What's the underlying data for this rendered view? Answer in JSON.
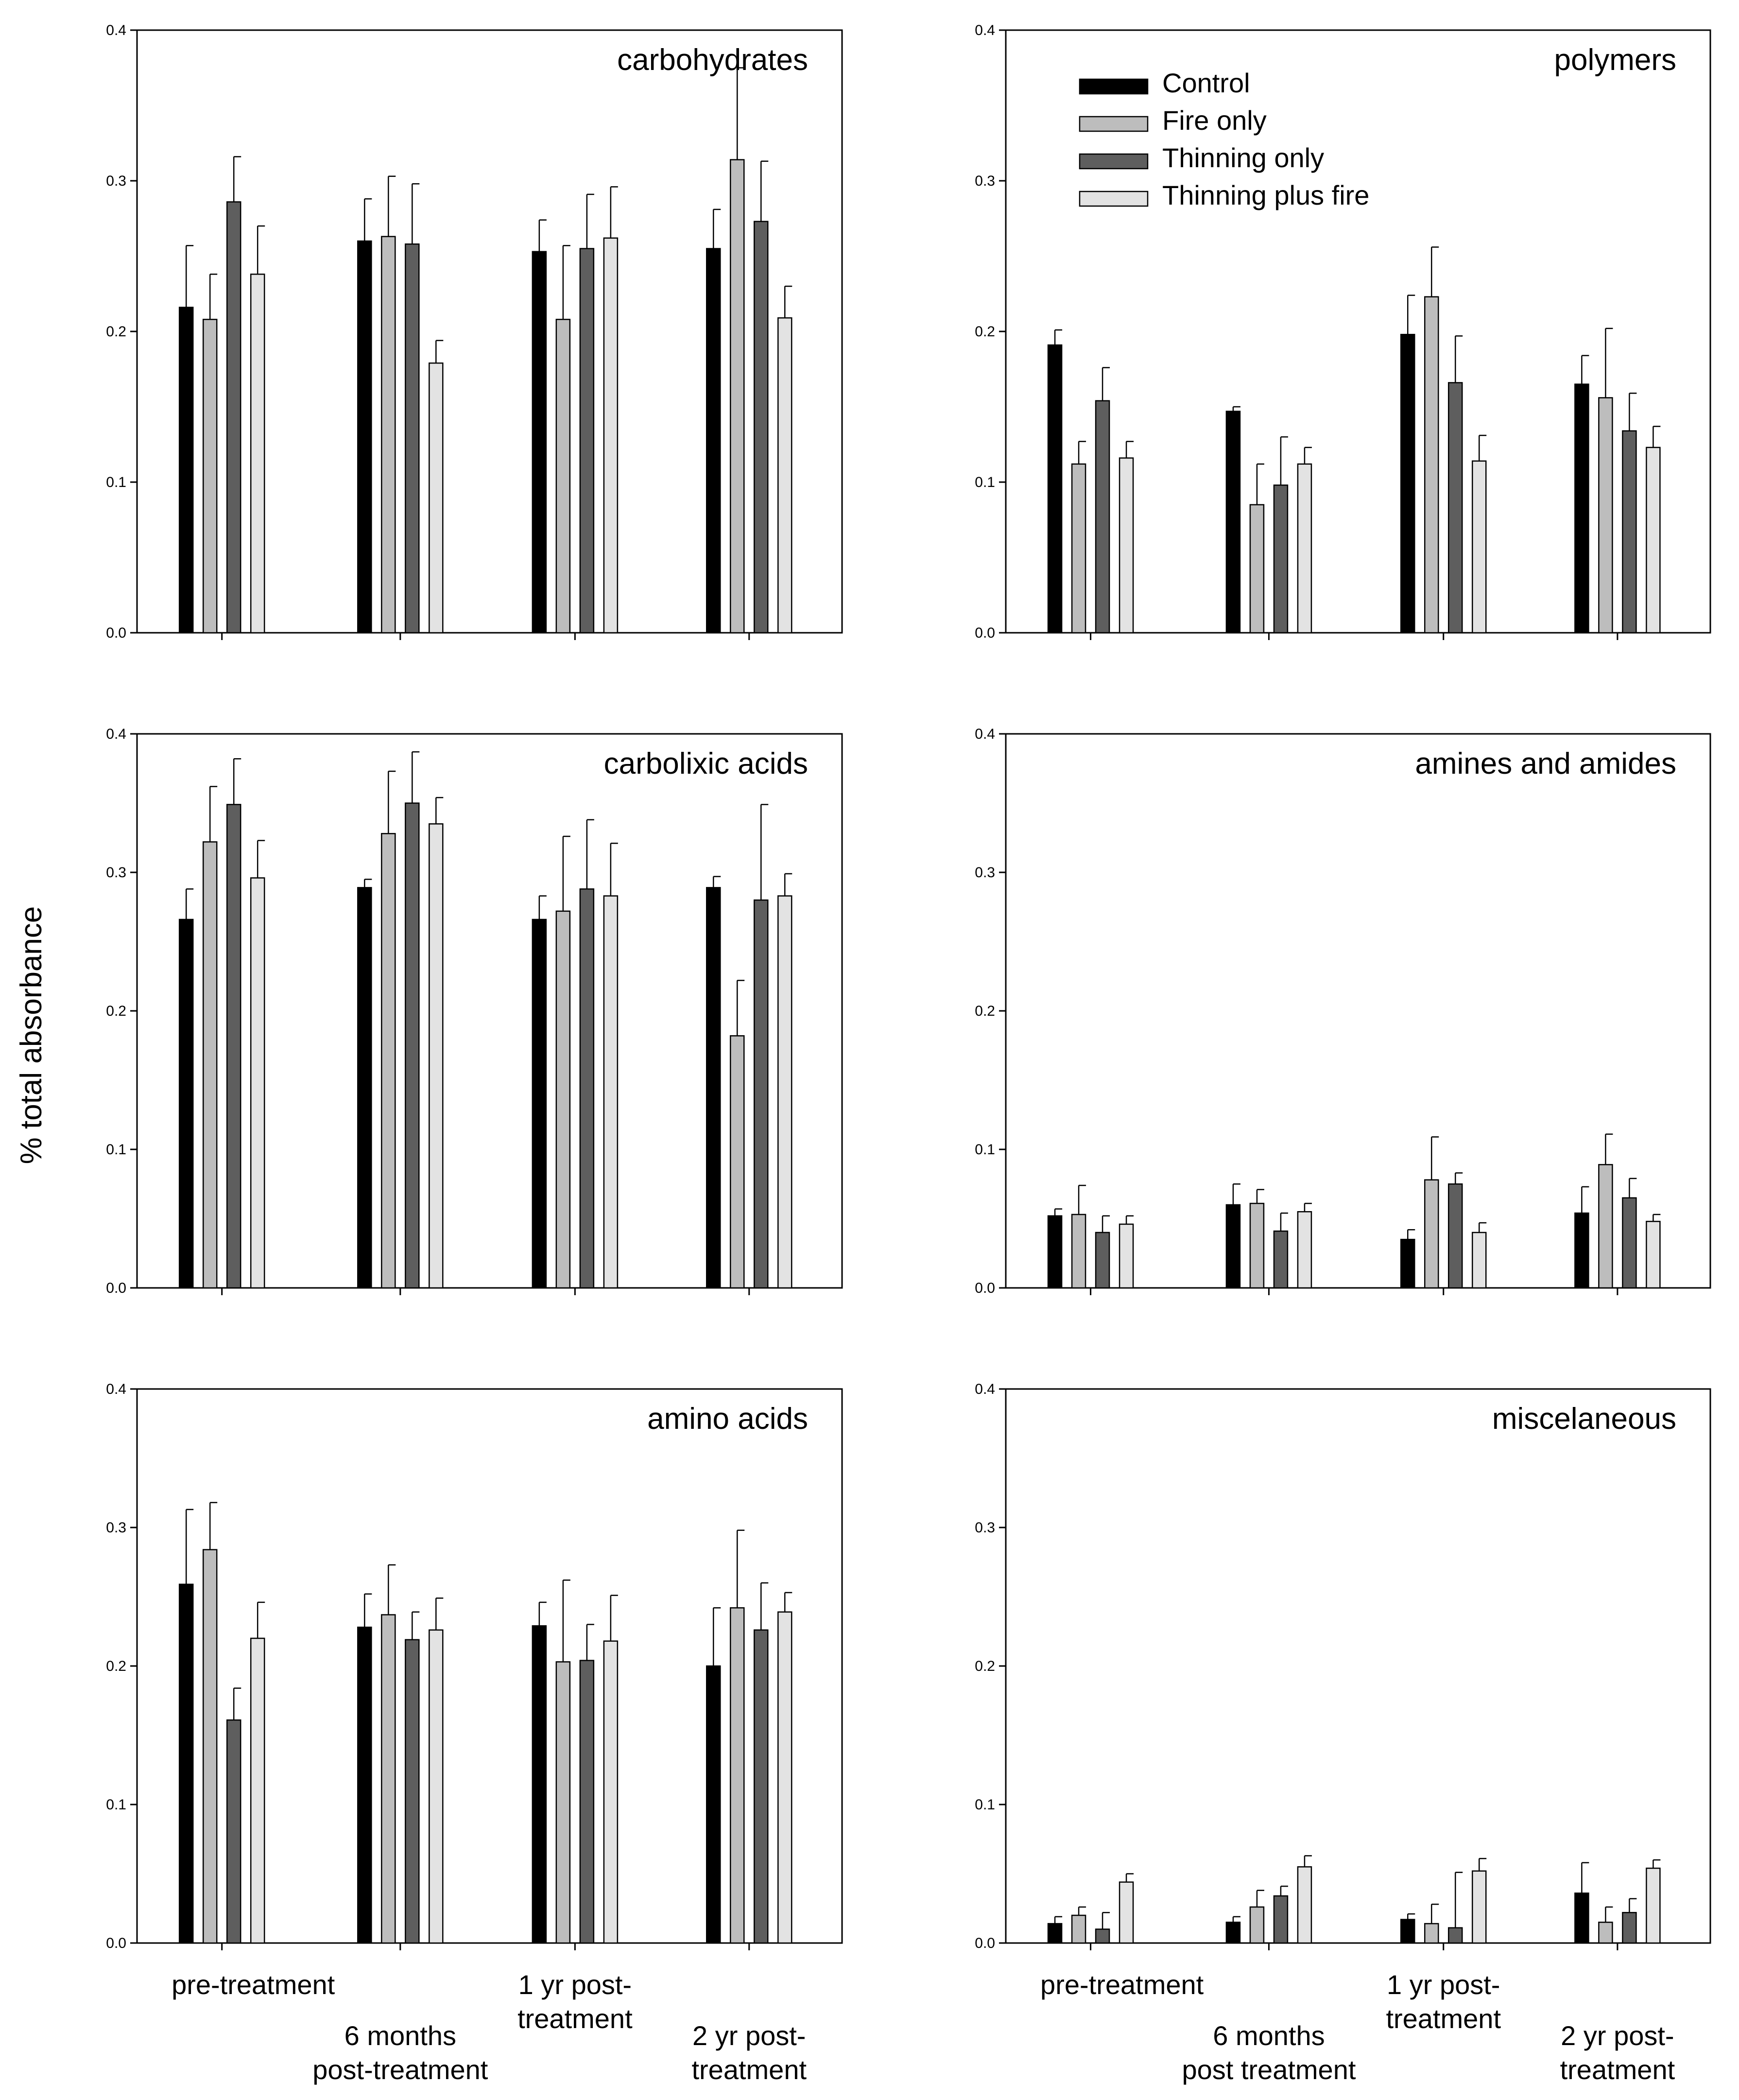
{
  "chart_data": {
    "type": "bar",
    "ylabel": "% total absorbance",
    "ylim": [
      0,
      0.4
    ],
    "yticks": [
      "0.0",
      "0.1",
      "0.2",
      "0.3",
      "0.4"
    ],
    "series_names": [
      "Control",
      "Fire only",
      "Thinning only",
      "Thinning plus fire"
    ],
    "series_colors": [
      "#000000",
      "#bdbdbd",
      "#5e5e5e",
      "#e3e3e3"
    ],
    "categories_left": [
      [
        "pre-treatment"
      ],
      [
        "6 months",
        "post-treatment"
      ],
      [
        "1 yr post-",
        "treatment"
      ],
      [
        "2 yr post-",
        "treatment"
      ]
    ],
    "categories_right": [
      [
        "pre-treatment"
      ],
      [
        "6 months",
        "post treatment"
      ],
      [
        "1 yr post-",
        "treatment"
      ],
      [
        "2 yr post-",
        "treatment"
      ]
    ],
    "panels": [
      {
        "title": "carbohydrates",
        "values": [
          [
            0.216,
            0.208,
            0.286,
            0.238
          ],
          [
            0.26,
            0.263,
            0.258,
            0.179
          ],
          [
            0.253,
            0.208,
            0.255,
            0.262
          ],
          [
            0.255,
            0.314,
            0.273,
            0.209
          ]
        ],
        "errors": [
          [
            0.041,
            0.03,
            0.03,
            0.032
          ],
          [
            0.028,
            0.04,
            0.04,
            0.015
          ],
          [
            0.021,
            0.049,
            0.036,
            0.034
          ],
          [
            0.026,
            0.061,
            0.04,
            0.021
          ]
        ]
      },
      {
        "title": "polymers",
        "values": [
          [
            0.191,
            0.112,
            0.154,
            0.116
          ],
          [
            0.147,
            0.085,
            0.098,
            0.112
          ],
          [
            0.198,
            0.223,
            0.166,
            0.114
          ],
          [
            0.165,
            0.156,
            0.134,
            0.123
          ]
        ],
        "errors": [
          [
            0.01,
            0.015,
            0.022,
            0.011
          ],
          [
            0.003,
            0.027,
            0.032,
            0.011
          ],
          [
            0.026,
            0.033,
            0.031,
            0.017
          ],
          [
            0.019,
            0.046,
            0.025,
            0.014
          ]
        ]
      },
      {
        "title": "carbolixic acids",
        "values": [
          [
            0.266,
            0.322,
            0.349,
            0.296
          ],
          [
            0.289,
            0.328,
            0.35,
            0.335
          ],
          [
            0.266,
            0.272,
            0.288,
            0.283
          ],
          [
            0.289,
            0.182,
            0.28,
            0.283
          ]
        ],
        "errors": [
          [
            0.022,
            0.04,
            0.033,
            0.027
          ],
          [
            0.006,
            0.045,
            0.037,
            0.019
          ],
          [
            0.017,
            0.054,
            0.05,
            0.038
          ],
          [
            0.008,
            0.04,
            0.069,
            0.016
          ]
        ]
      },
      {
        "title": "amines and amides",
        "values": [
          [
            0.052,
            0.053,
            0.04,
            0.046
          ],
          [
            0.06,
            0.061,
            0.041,
            0.055
          ],
          [
            0.035,
            0.078,
            0.075,
            0.04
          ],
          [
            0.054,
            0.089,
            0.065,
            0.048
          ]
        ],
        "errors": [
          [
            0.005,
            0.021,
            0.012,
            0.006
          ],
          [
            0.015,
            0.01,
            0.013,
            0.006
          ],
          [
            0.007,
            0.031,
            0.008,
            0.007
          ],
          [
            0.019,
            0.022,
            0.014,
            0.005
          ]
        ]
      },
      {
        "title": "amino acids",
        "values": [
          [
            0.259,
            0.284,
            0.161,
            0.22
          ],
          [
            0.228,
            0.237,
            0.219,
            0.226
          ],
          [
            0.229,
            0.203,
            0.204,
            0.218
          ],
          [
            0.2,
            0.242,
            0.226,
            0.239
          ]
        ],
        "errors": [
          [
            0.054,
            0.034,
            0.023,
            0.026
          ],
          [
            0.024,
            0.036,
            0.02,
            0.023
          ],
          [
            0.017,
            0.059,
            0.026,
            0.033
          ],
          [
            0.042,
            0.056,
            0.034,
            0.014
          ]
        ]
      },
      {
        "title": "miscelaneous",
        "values": [
          [
            0.014,
            0.02,
            0.01,
            0.044
          ],
          [
            0.015,
            0.026,
            0.034,
            0.055
          ],
          [
            0.017,
            0.014,
            0.011,
            0.052
          ],
          [
            0.036,
            0.015,
            0.022,
            0.054
          ]
        ],
        "errors": [
          [
            0.005,
            0.006,
            0.012,
            0.006
          ],
          [
            0.004,
            0.012,
            0.007,
            0.008
          ],
          [
            0.004,
            0.014,
            0.04,
            0.009
          ],
          [
            0.022,
            0.011,
            0.01,
            0.006
          ]
        ]
      }
    ]
  }
}
